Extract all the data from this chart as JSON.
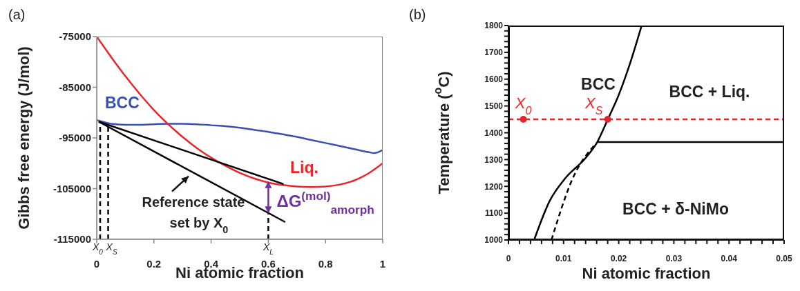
{
  "chart_data": [
    {
      "type": "line",
      "title": "(a)",
      "xlabel": "Ni atomic fraction",
      "ylabel": "Gibbs free energy (J/mol)",
      "xlim": [
        0,
        1
      ],
      "ylim": [
        -115000,
        -75000
      ],
      "xticks": [
        0,
        0.2,
        0.4,
        0.6,
        0.8,
        1
      ],
      "yticks": [
        -115000,
        -105000,
        -95000,
        -85000,
        -75000
      ],
      "grid": false,
      "legend": false,
      "marker": "none",
      "series": [
        {
          "name": "BCC",
          "color": "#3a4fb0",
          "x": [
            0,
            0.05,
            0.1,
            0.15,
            0.2,
            0.25,
            0.3,
            0.35,
            0.4,
            0.45,
            0.5,
            0.55,
            0.6,
            0.65,
            0.7,
            0.75,
            0.8,
            0.85,
            0.9,
            0.95,
            0.97,
            1
          ],
          "values": [
            -91500,
            -92200,
            -92400,
            -92400,
            -92300,
            -92200,
            -92200,
            -92300,
            -92500,
            -92700,
            -93000,
            -93400,
            -93800,
            -94300,
            -94800,
            -95400,
            -96000,
            -96600,
            -97200,
            -97800,
            -98000,
            -97400
          ]
        },
        {
          "name": "Liq.",
          "color": "#e8262a",
          "x": [
            0,
            0.05,
            0.1,
            0.15,
            0.2,
            0.25,
            0.3,
            0.35,
            0.4,
            0.45,
            0.5,
            0.55,
            0.6,
            0.65,
            0.7,
            0.75,
            0.8,
            0.85,
            0.9,
            0.95,
            1
          ],
          "values": [
            -75000,
            -79000,
            -82800,
            -86300,
            -89500,
            -92300,
            -94800,
            -97000,
            -98900,
            -100500,
            -101900,
            -103000,
            -103800,
            -104300,
            -104600,
            -104700,
            -104600,
            -104200,
            -103400,
            -102000,
            -100000
          ]
        },
        {
          "color": "#000000",
          "x": [
            0.007,
            0.653
          ],
          "values": [
            -91800,
            -104100
          ]
        },
        {
          "color": "#000000",
          "x": [
            0.007,
            0.659
          ],
          "values": [
            -91800,
            -111600
          ]
        },
        {
          "color": "#000000",
          "line_style": "dashed",
          "x": [
            0.012,
            0.012
          ],
          "values": [
            -115000,
            -92000
          ]
        },
        {
          "color": "#000000",
          "line_style": "dashed",
          "x": [
            0.04,
            0.04
          ],
          "values": [
            -115000,
            -92400
          ]
        },
        {
          "color": "#000000",
          "line_style": "dashed",
          "x": [
            0.6,
            0.6
          ],
          "values": [
            -115000,
            -109600
          ]
        },
        {
          "color": "#7030a0",
          "x": [
            0.6,
            0.6
          ],
          "values": [
            -103800,
            -109600
          ]
        }
      ],
      "annotations": [
        {
          "text": "Reference state set by X$_{0}$",
          "x": 0.326,
          "y": -102300
        },
        {
          "text": "ΔG$^{(mol)}$$_{amorph}$",
          "x": 0.6,
          "y": -106700
        },
        {
          "text": "X$_{0}$",
          "x": 0.012,
          "y": -115000
        },
        {
          "text": "X$_{S}$",
          "x": 0.04,
          "y": -115000
        },
        {
          "text": "X$_{L}$",
          "x": 0.6,
          "y": -115000
        }
      ]
    },
    {
      "type": "line",
      "title": "(b)",
      "xlabel": "Ni atomic fraction",
      "ylabel": "Temperature ($^{o}$C)",
      "xlim": [
        0,
        0.05
      ],
      "ylim": [
        1000,
        1800
      ],
      "xticks": [
        0,
        {
          "value": 0.002,
          "label": null
        },
        {
          "value": 0.004,
          "label": null
        },
        {
          "value": 0.006,
          "label": null
        },
        {
          "value": 0.008,
          "label": null
        },
        0.01,
        {
          "value": 0.012,
          "label": null
        },
        {
          "value": 0.014,
          "label": null
        },
        {
          "value": 0.016,
          "label": null
        },
        {
          "value": 0.018,
          "label": null
        },
        0.02,
        {
          "value": 0.022,
          "label": null
        },
        {
          "value": 0.024,
          "label": null
        },
        {
          "value": 0.026,
          "label": null
        },
        {
          "value": 0.028,
          "label": null
        },
        0.03,
        {
          "value": 0.032,
          "label": null
        },
        {
          "value": 0.034,
          "label": null
        },
        {
          "value": 0.036,
          "label": null
        },
        {
          "value": 0.038,
          "label": null
        },
        0.04,
        {
          "value": 0.042,
          "label": null
        },
        {
          "value": 0.044,
          "label": null
        },
        {
          "value": 0.046,
          "label": null
        },
        {
          "value": 0.048,
          "label": null
        },
        0.05
      ],
      "yticks": [
        1000,
        {
          "value": 1020,
          "label": null
        },
        {
          "value": 1040,
          "label": null
        },
        {
          "value": 1060,
          "label": null
        },
        {
          "value": 1080,
          "label": null
        },
        1100,
        {
          "value": 1120,
          "label": null
        },
        {
          "value": 1140,
          "label": null
        },
        {
          "value": 1160,
          "label": null
        },
        {
          "value": 1180,
          "label": null
        },
        1200,
        {
          "value": 1220,
          "label": null
        },
        {
          "value": 1240,
          "label": null
        },
        {
          "value": 1260,
          "label": null
        },
        {
          "value": 1280,
          "label": null
        },
        1300,
        {
          "value": 1320,
          "label": null
        },
        {
          "value": 1340,
          "label": null
        },
        {
          "value": 1360,
          "label": null
        },
        {
          "value": 1380,
          "label": null
        },
        1400,
        {
          "value": 1420,
          "label": null
        },
        {
          "value": 1440,
          "label": null
        },
        {
          "value": 1460,
          "label": null
        },
        {
          "value": 1480,
          "label": null
        },
        1500,
        {
          "value": 1520,
          "label": null
        },
        {
          "value": 1540,
          "label": null
        },
        {
          "value": 1560,
          "label": null
        },
        {
          "value": 1580,
          "label": null
        },
        1600,
        {
          "value": 1620,
          "label": null
        },
        {
          "value": 1640,
          "label": null
        },
        {
          "value": 1660,
          "label": null
        },
        {
          "value": 1680,
          "label": null
        },
        1700,
        {
          "value": 1720,
          "label": null
        },
        {
          "value": 1740,
          "label": null
        },
        {
          "value": 1760,
          "label": null
        },
        {
          "value": 1780,
          "label": null
        },
        1800
      ],
      "grid": false,
      "legend": false,
      "marker": "none",
      "series": [
        {
          "color": "#000000",
          "x": [
            0.00466,
            0.00746,
            0.0103,
            0.014,
            0.0161,
            0.018,
            0.02006,
            0.0219,
            0.02416
          ],
          "values": [
            1000,
            1145,
            1230,
            1306,
            1365,
            1449,
            1544,
            1649,
            1800
          ]
        },
        {
          "color": "#000000",
          "line_style": "dashed",
          "x": [
            0.0078,
            0.01166,
            0.0159
          ],
          "values": [
            1000,
            1230,
            1360
          ]
        },
        {
          "color": "#000000",
          "x": [
            0.0161,
            0.05
          ],
          "values": [
            1365,
            1365
          ]
        },
        {
          "type": "scatter",
          "color": "#e8262a",
          "marker": "circle",
          "x": [
            0.0027,
            0.018
          ],
          "values": [
            1450,
            1450
          ]
        }
      ],
      "ref_lines": [
        {
          "axis": "y",
          "value": 1450,
          "color": "#e8262a",
          "line_style": "dashed"
        }
      ],
      "annotations": [
        "BCC",
        "BCC + Liq.",
        "BCC + δ-NiMo",
        {
          "text": "X$_{0}$",
          "x": 0.0027,
          "y": 1450
        },
        {
          "text": "X$_{S}$",
          "x": 0.018,
          "y": 1450
        }
      ]
    }
  ]
}
